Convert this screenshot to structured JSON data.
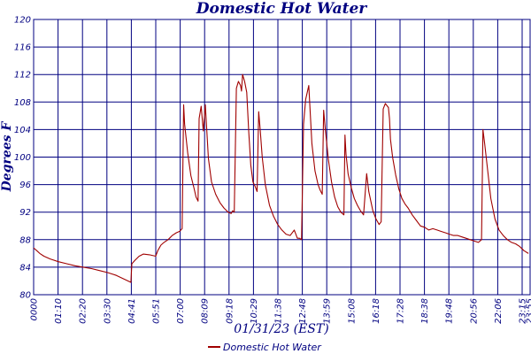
{
  "colors": {
    "title": "#000080",
    "axis_text": "#000080",
    "grid": "#000080",
    "series": "#a00000",
    "background": "#ffffff"
  },
  "chart_data": {
    "type": "line",
    "title": "Domestic Hot Water",
    "xlabel": "01/31/23 (EST)",
    "ylabel": "Degrees F",
    "ylim": [
      80,
      120
    ],
    "y_ticks": [
      80,
      84,
      88,
      92,
      96,
      100,
      104,
      108,
      112,
      116,
      120
    ],
    "x_tick_labels": [
      "0000",
      "01:10",
      "02:20",
      "03:30",
      "04:41",
      "05:51",
      "07:00",
      "08:09",
      "09:18",
      "10:29",
      "11:38",
      "12:48",
      "13:59",
      "15:08",
      "16:18",
      "17:28",
      "18:38",
      "19:48",
      "20:56",
      "22:06",
      "23:15",
      "23:55"
    ],
    "grid": true,
    "legend_position": "bottom-center",
    "series": [
      {
        "name": "Domestic Hot Water",
        "x_hours": [
          0,
          0.15,
          0.3,
          0.5,
          0.8,
          1.2,
          1.6,
          2.0,
          2.4,
          2.8,
          3.2,
          3.6,
          4.0,
          4.35,
          4.7,
          4.75,
          4.9,
          5.1,
          5.3,
          5.6,
          5.9,
          6.0,
          6.15,
          6.3,
          6.5,
          6.7,
          6.9,
          7.05,
          7.18,
          7.25,
          7.3,
          7.45,
          7.6,
          7.75,
          7.85,
          7.95,
          8.0,
          8.1,
          8.2,
          8.3,
          8.45,
          8.6,
          8.8,
          9.0,
          9.2,
          9.4,
          9.55,
          9.62,
          9.7,
          9.8,
          9.9,
          10.0,
          10.05,
          10.1,
          10.2,
          10.3,
          10.4,
          10.5,
          10.6,
          10.7,
          10.8,
          10.88,
          10.95,
          11.05,
          11.2,
          11.4,
          11.6,
          11.8,
          12.0,
          12.2,
          12.4,
          12.6,
          12.75,
          12.85,
          12.95,
          13.05,
          13.15,
          13.3,
          13.45,
          13.6,
          13.75,
          13.85,
          13.95,
          14.02,
          14.1,
          14.25,
          14.4,
          14.55,
          14.7,
          14.85,
          15.0,
          15.05,
          15.1,
          15.2,
          15.35,
          15.5,
          15.65,
          15.8,
          15.95,
          16.1,
          16.2,
          16.3,
          16.4,
          16.55,
          16.7,
          16.8,
          16.9,
          17.0,
          17.15,
          17.2,
          17.25,
          17.35,
          17.5,
          17.65,
          17.8,
          17.95,
          18.1,
          18.3,
          18.5,
          18.7,
          18.9,
          19.1,
          19.3,
          19.5,
          19.7,
          19.9,
          20.1,
          20.3,
          20.5,
          20.7,
          20.9,
          21.1,
          21.3,
          21.5,
          21.65,
          21.72,
          21.8,
          21.95,
          22.1,
          22.3,
          22.5,
          22.7,
          22.9,
          23.1,
          23.3,
          23.5,
          23.7,
          23.92
        ],
        "values": [
          86.8,
          86.4,
          86.0,
          85.6,
          85.2,
          84.8,
          84.5,
          84.2,
          84.0,
          83.8,
          83.5,
          83.2,
          82.8,
          82.3,
          81.8,
          84.5,
          85.0,
          85.6,
          85.9,
          85.8,
          85.6,
          86.4,
          87.2,
          87.6,
          88.0,
          88.6,
          89.0,
          89.2,
          89.6,
          107.6,
          104.8,
          100.6,
          97.3,
          95.5,
          94.2,
          93.6,
          105.6,
          107.4,
          103.8,
          107.6,
          99.8,
          96.4,
          94.6,
          93.4,
          92.6,
          92.0,
          91.8,
          92.2,
          92.0,
          110.0,
          111.0,
          110.4,
          109.6,
          112.0,
          111.0,
          109.4,
          103.6,
          98.8,
          96.4,
          95.8,
          95.0,
          106.6,
          104.0,
          100.0,
          96.0,
          93.0,
          91.4,
          90.2,
          89.4,
          88.8,
          88.6,
          89.4,
          88.2,
          88.2,
          88.0,
          104.8,
          108.4,
          110.4,
          102.0,
          98.0,
          96.0,
          95.2,
          94.6,
          106.8,
          104.0,
          99.6,
          96.4,
          94.2,
          92.8,
          92.0,
          91.6,
          103.2,
          100.4,
          97.6,
          95.6,
          94.0,
          93.0,
          92.2,
          91.6,
          97.6,
          95.0,
          93.6,
          92.2,
          91.0,
          90.2,
          90.6,
          107.0,
          107.8,
          107.2,
          105.6,
          102.6,
          100.0,
          97.4,
          95.4,
          94.0,
          93.2,
          92.6,
          91.6,
          90.8,
          90.0,
          89.8,
          89.4,
          89.6,
          89.4,
          89.2,
          89.0,
          88.8,
          88.6,
          88.6,
          88.4,
          88.2,
          88.0,
          87.8,
          87.6,
          88.0,
          104.0,
          102.0,
          98.0,
          94.0,
          91.0,
          89.4,
          88.6,
          88.0,
          87.6,
          87.4,
          87.0,
          86.4,
          86.0
        ]
      }
    ]
  }
}
